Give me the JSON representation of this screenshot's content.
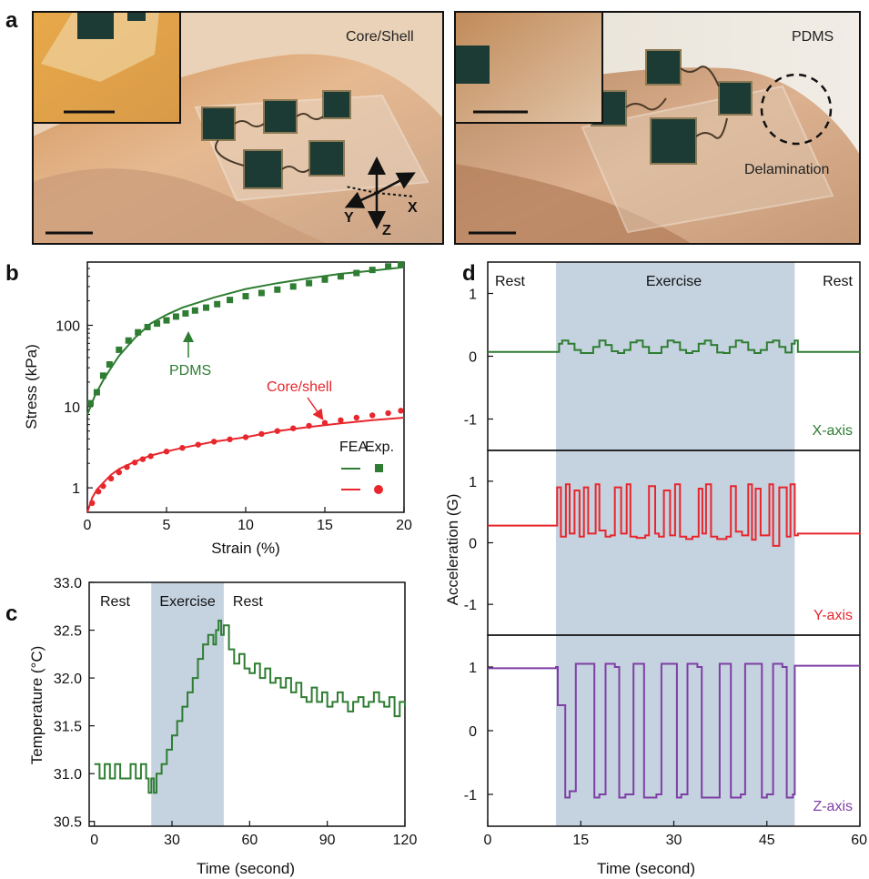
{
  "panels": {
    "a": {
      "label": "a",
      "left_title": "Core/Shell",
      "right_title": "PDMS",
      "delamination": "Delamination",
      "axes_labels": [
        "X",
        "Y",
        "Z"
      ]
    },
    "b": {
      "label": "b"
    },
    "c": {
      "label": "c"
    },
    "d": {
      "label": "d"
    }
  },
  "colors": {
    "green": "#2e7d32",
    "red": "#e8262c",
    "purple": "#7e3fa6",
    "shade": "#c5d2df"
  },
  "chart_data": [
    {
      "id": "b",
      "type": "line",
      "title": "",
      "xlabel": "Strain (%)",
      "ylabel": "Stress (kPa)",
      "xlim": [
        0,
        20
      ],
      "ylim": [
        0.5,
        600
      ],
      "yscale": "log",
      "xticks": [
        0,
        5,
        10,
        15,
        20
      ],
      "yticks": [
        1,
        10,
        100
      ],
      "legend": {
        "header": [
          "FEA.",
          "Exp."
        ],
        "placement": "bottom-right"
      },
      "annotations": [
        {
          "text": "PDMS",
          "series": "PDMS",
          "x": 5.8,
          "y": 150
        },
        {
          "text": "Core/shell",
          "series": "Core/shell",
          "x": 15.2,
          "y": 7.5
        }
      ],
      "series": [
        {
          "name": "PDMS",
          "kind": "FEA",
          "color": "#2e7d32",
          "x": [
            0,
            0.5,
            1,
            1.5,
            2,
            3,
            4,
            5,
            6,
            8,
            10,
            12,
            14,
            16,
            18,
            20
          ],
          "y": [
            8,
            14,
            21,
            30,
            42,
            70,
            105,
            135,
            165,
            220,
            280,
            330,
            380,
            430,
            470,
            520
          ]
        },
        {
          "name": "PDMS",
          "kind": "Exp",
          "color": "#2e7d32",
          "x": [
            0.2,
            0.6,
            1.0,
            1.4,
            2.0,
            2.6,
            3.2,
            3.8,
            4.4,
            5.0,
            5.6,
            6.2,
            6.8,
            7.5,
            8.2,
            9.0,
            10,
            11,
            12,
            13,
            14,
            15,
            16,
            17,
            18,
            19,
            19.8
          ],
          "y": [
            11,
            15,
            24,
            33,
            50,
            65,
            82,
            95,
            105,
            115,
            128,
            140,
            152,
            165,
            182,
            205,
            228,
            250,
            275,
            300,
            330,
            365,
            400,
            440,
            480,
            530,
            560
          ]
        },
        {
          "name": "Core/shell",
          "kind": "FEA",
          "color": "#e8262c",
          "x": [
            0,
            0.3,
            0.6,
            1,
            1.5,
            2,
            3,
            4,
            5,
            6,
            8,
            10,
            12,
            14,
            16,
            18,
            20
          ],
          "y": [
            0.5,
            0.75,
            0.95,
            1.15,
            1.45,
            1.7,
            2.1,
            2.5,
            2.8,
            3.1,
            3.7,
            4.2,
            5.0,
            5.6,
            6.2,
            6.8,
            7.3
          ]
        },
        {
          "name": "Core/shell",
          "kind": "Exp",
          "color": "#e8262c",
          "x": [
            0.3,
            0.7,
            1.0,
            1.5,
            2.0,
            2.5,
            3.0,
            3.5,
            4.0,
            5.0,
            6.0,
            7.0,
            8.0,
            9.0,
            10,
            11,
            12,
            13,
            14,
            15,
            16,
            17,
            18,
            19,
            19.8
          ],
          "y": [
            0.65,
            0.9,
            1.05,
            1.3,
            1.55,
            1.8,
            2.05,
            2.25,
            2.45,
            2.8,
            3.1,
            3.4,
            3.7,
            3.95,
            4.2,
            4.6,
            5.0,
            5.4,
            5.8,
            6.3,
            6.8,
            7.3,
            7.8,
            8.3,
            8.9
          ]
        }
      ]
    },
    {
      "id": "c",
      "type": "line",
      "title": "",
      "xlabel": "Time (second)",
      "ylabel": "Temperature (°C)",
      "xlim": [
        -2,
        120
      ],
      "ylim": [
        30.45,
        33.0
      ],
      "xticks": [
        0,
        30,
        60,
        90,
        120
      ],
      "yticks": [
        30.5,
        31.0,
        31.5,
        32.0,
        32.5,
        33.0
      ],
      "ytick_labels": [
        "30.5",
        "31.0",
        "31.5",
        "32.0",
        "32.5",
        "33.0"
      ],
      "shaded_region": [
        22,
        50
      ],
      "phase_labels": [
        {
          "text": "Rest",
          "x": 8
        },
        {
          "text": "Exercise",
          "x": 36
        },
        {
          "text": "Rest",
          "x": 60
        }
      ],
      "series": [
        {
          "name": "",
          "color": "#2e7d32",
          "x": [
            0,
            2,
            4,
            6,
            8,
            10,
            12,
            14,
            16,
            18,
            20,
            21,
            22,
            23,
            24,
            26,
            28,
            30,
            32,
            34,
            36,
            38,
            40,
            42,
            44,
            46,
            47,
            48,
            49,
            50,
            52,
            54,
            56,
            58,
            60,
            62,
            64,
            66,
            68,
            70,
            72,
            74,
            76,
            78,
            80,
            82,
            84,
            86,
            88,
            90,
            92,
            94,
            96,
            98,
            100,
            102,
            104,
            106,
            108,
            110,
            112,
            114,
            116,
            118,
            120
          ],
          "y": [
            31.1,
            30.95,
            31.1,
            30.95,
            31.1,
            30.95,
            30.95,
            31.1,
            30.95,
            31.1,
            30.95,
            30.8,
            30.95,
            30.8,
            31.0,
            31.1,
            31.25,
            31.4,
            31.55,
            31.7,
            31.85,
            32.0,
            32.2,
            32.35,
            32.45,
            32.35,
            32.5,
            32.6,
            32.45,
            32.55,
            32.3,
            32.15,
            32.25,
            32.1,
            32.05,
            32.15,
            32.0,
            32.1,
            31.95,
            32.0,
            31.9,
            32.0,
            31.85,
            31.95,
            31.8,
            31.75,
            31.9,
            31.75,
            31.85,
            31.7,
            31.75,
            31.85,
            31.75,
            31.65,
            31.75,
            31.8,
            31.7,
            31.75,
            31.85,
            31.75,
            31.7,
            31.8,
            31.6,
            31.75,
            31.7
          ]
        }
      ]
    },
    {
      "id": "d",
      "type": "line",
      "title": "",
      "xlabel": "Time (second)",
      "ylabel": "Acceleration (G)",
      "xlim": [
        0,
        60
      ],
      "ylim": [
        -1.5,
        1.5
      ],
      "xticks": [
        0,
        15,
        30,
        45,
        60
      ],
      "yticks": [
        -1,
        0,
        1
      ],
      "shaded_region": [
        11,
        49.5
      ],
      "phase_labels": [
        {
          "text": "Rest",
          "x": 5
        },
        {
          "text": "Exercise",
          "x": 30
        },
        {
          "text": "Rest",
          "x": 55
        }
      ],
      "subplots": [
        {
          "name": "X-axis",
          "color": "#2e7d32",
          "x": [
            0,
            11,
            11.5,
            12,
            13,
            14,
            15,
            16,
            17,
            18,
            19,
            20,
            21,
            22,
            23,
            24,
            25,
            26,
            27,
            28,
            29,
            30,
            31,
            32,
            33,
            34,
            35,
            36,
            37,
            38,
            39,
            40,
            41,
            42,
            43,
            44,
            45,
            46,
            47,
            48,
            49,
            49.5,
            50,
            60
          ],
          "y": [
            0.07,
            0.07,
            0.2,
            0.25,
            0.2,
            0.1,
            0.05,
            0.05,
            0.15,
            0.25,
            0.18,
            0.08,
            0.05,
            0.1,
            0.22,
            0.25,
            0.15,
            0.05,
            0.05,
            0.15,
            0.25,
            0.22,
            0.1,
            0.05,
            0.08,
            0.2,
            0.25,
            0.18,
            0.06,
            0.05,
            0.15,
            0.25,
            0.22,
            0.1,
            0.05,
            0.1,
            0.22,
            0.25,
            0.15,
            0.06,
            0.2,
            0.25,
            0.07,
            0.05
          ]
        },
        {
          "name": "Y-axis",
          "color": "#e8262c",
          "x": [
            0,
            11,
            11.2,
            11.8,
            12.6,
            13.2,
            14,
            14.8,
            15.5,
            16.2,
            17.4,
            18,
            19,
            19.8,
            20.5,
            21.5,
            22.4,
            23,
            24,
            25.4,
            26,
            27,
            27.6,
            28.4,
            29.4,
            30.2,
            31,
            32,
            33,
            34,
            34.6,
            35.2,
            36,
            37,
            38.5,
            39.2,
            40,
            41,
            42,
            42.6,
            43.2,
            44,
            45.4,
            46,
            47,
            48.2,
            48.8,
            49.5,
            50,
            60
          ],
          "y": [
            0.28,
            0.28,
            0.9,
            0.1,
            0.95,
            0.15,
            0.85,
            0.1,
            0.9,
            0.15,
            0.95,
            0.2,
            0.1,
            0.12,
            0.9,
            0.15,
            0.95,
            0.1,
            0.08,
            0.12,
            0.92,
            0.15,
            0.1,
            0.85,
            0.12,
            0.95,
            0.1,
            0.06,
            0.1,
            0.88,
            0.15,
            0.95,
            0.1,
            0.06,
            0.1,
            0.92,
            0.18,
            0.12,
            0.95,
            0.05,
            0.88,
            0.12,
            0.95,
            -0.05,
            0.9,
            0.1,
            0.95,
            0.12,
            0.15,
            0.17
          ]
        },
        {
          "name": "Z-axis",
          "color": "#7e3fa6",
          "x": [
            0,
            11,
            11.3,
            12.5,
            13.2,
            14.2,
            15,
            17.2,
            18,
            19,
            20.5,
            21.2,
            22.2,
            23.5,
            24.2,
            25.2,
            27.2,
            28,
            29,
            30.5,
            31.2,
            32.2,
            33.8,
            34.5,
            35.5,
            37.4,
            38.2,
            39.2,
            40.8,
            41.5,
            42.5,
            44.2,
            45,
            46,
            47.5,
            48.2,
            49.2,
            49.5,
            60
          ],
          "y": [
            0.98,
            1.0,
            0.4,
            -1.05,
            -0.95,
            1.05,
            1.05,
            -1.05,
            -1.0,
            1.05,
            1.0,
            -1.05,
            -1.0,
            1.05,
            1.05,
            -1.05,
            -1.0,
            1.05,
            1.05,
            -1.05,
            -1.0,
            1.05,
            1.0,
            -1.05,
            -1.05,
            1.05,
            1.05,
            -1.05,
            -1.0,
            1.05,
            1.05,
            -1.05,
            -1.0,
            1.05,
            1.0,
            -1.05,
            -1.0,
            1.02,
            1.02
          ]
        }
      ]
    }
  ]
}
